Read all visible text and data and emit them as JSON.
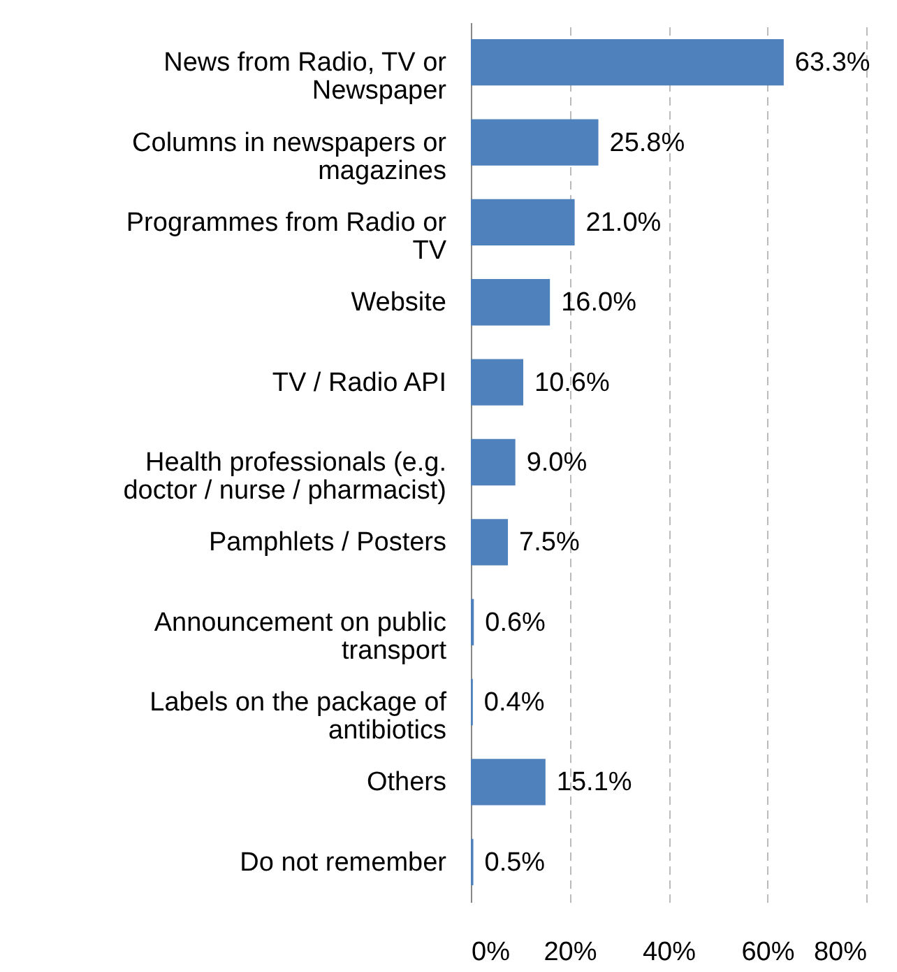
{
  "chart_data": {
    "type": "bar",
    "orientation": "horizontal",
    "categories": [
      "News from Radio, TV or Newspaper",
      "Columns in newspapers or magazines",
      "Programmes from Radio or TV",
      "Website",
      "TV / Radio API",
      "Health professionals (e.g. doctor / nurse / pharmacist)",
      "Pamphlets / Posters",
      "Announcement on public transport",
      "Labels on the package of antibiotics",
      "Others",
      "Do not remember"
    ],
    "values": [
      63.3,
      25.8,
      21.0,
      16.0,
      10.6,
      9.0,
      7.5,
      0.6,
      0.4,
      15.1,
      0.5
    ],
    "value_labels": [
      "63.3%",
      "25.8%",
      "21.0%",
      "16.0%",
      "10.6%",
      "9.0%",
      "7.5%",
      "0.6%",
      "0.4%",
      "15.1%",
      "0.5%"
    ],
    "color": "#4f81bd",
    "xlim": [
      0,
      80
    ],
    "xticks": [
      {
        "value": 0,
        "label": "0%"
      },
      {
        "value": 20,
        "label": "20%"
      },
      {
        "value": 40,
        "label": "40%"
      },
      {
        "value": 60,
        "label": "60%"
      },
      {
        "value": 80,
        "label": "80%"
      }
    ],
    "grid": "x"
  }
}
